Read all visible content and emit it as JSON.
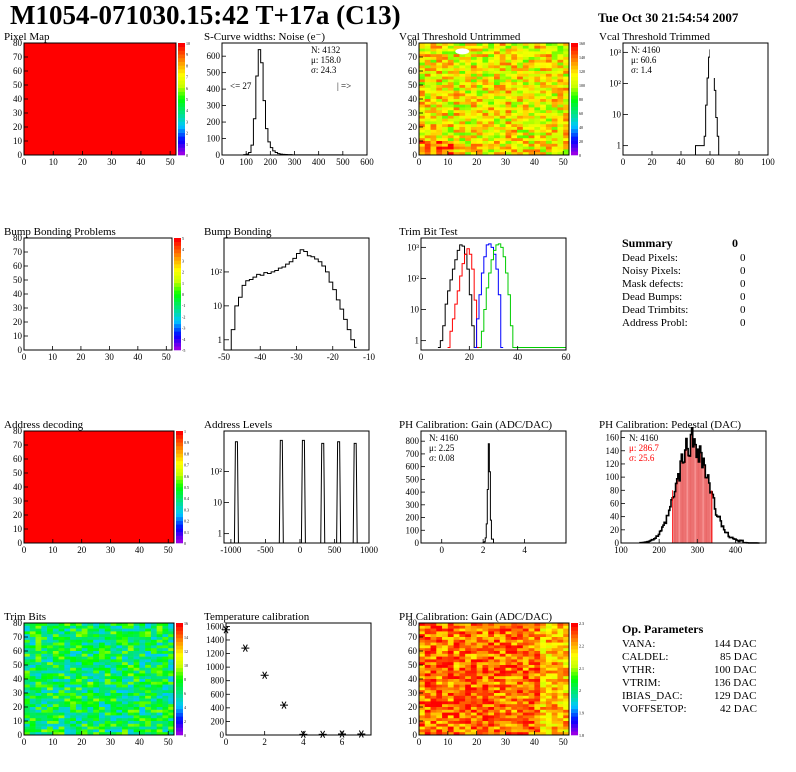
{
  "header": {
    "title": "M1054-071030.15:42 T+17a (C13)",
    "date": "Tue Oct 30 21:54:54 2007"
  },
  "colors": {
    "map_fill": "#ff0000",
    "hist_line": "#000000",
    "trim_red": "#ff0000",
    "trim_blue": "#0000ff",
    "trim_green": "#00cc00",
    "pedestal_red": "#ff0000"
  },
  "summary": {
    "title": "Summary",
    "total": "0",
    "rows": [
      {
        "label": "Dead Pixels:",
        "value": "0"
      },
      {
        "label": "Noisy Pixels:",
        "value": "0"
      },
      {
        "label": "Mask defects:",
        "value": "0"
      },
      {
        "label": "Dead Bumps:",
        "value": "0"
      },
      {
        "label": "Dead Trimbits:",
        "value": "0"
      },
      {
        "label": "Address Probl:",
        "value": "0"
      }
    ]
  },
  "op_params": {
    "title": "Op. Parameters",
    "rows": [
      {
        "label": "VANA:",
        "value": "144 DAC"
      },
      {
        "label": "CALDEL:",
        "value": "85 DAC"
      },
      {
        "label": "VTHR:",
        "value": "100 DAC"
      },
      {
        "label": "VTRIM:",
        "value": "136 DAC"
      },
      {
        "label": "IBIAS_DAC:",
        "value": "129 DAC"
      },
      {
        "label": "VOFFSETOP:",
        "value": "42 DAC"
      }
    ]
  },
  "chart_data": [
    {
      "id": "pixel_map",
      "type": "heatmap",
      "title": "Pixel Map",
      "xlim": [
        0,
        52
      ],
      "ylim": [
        0,
        80
      ],
      "xticks": [
        0,
        10,
        20,
        30,
        40,
        50
      ],
      "yticks": [
        0,
        10,
        20,
        30,
        40,
        50,
        60,
        70,
        80
      ],
      "fill": "uniform",
      "zlim": [
        0,
        10
      ],
      "colorbar_ticks": [
        "0",
        "1",
        "2",
        "3",
        "4",
        "5",
        "6",
        "7",
        "8",
        "9",
        "10"
      ]
    },
    {
      "id": "scurve",
      "type": "bar",
      "title": "S-Curve widths: Noise (e⁻)",
      "xlim": [
        0,
        600
      ],
      "ylim": [
        0,
        680
      ],
      "xticks": [
        0,
        100,
        200,
        300,
        400,
        500,
        600
      ],
      "yticks": [
        0,
        100,
        200,
        300,
        400,
        500,
        600
      ],
      "stats": [
        "N: 4132",
        "μ: 158.0",
        "σ: 24.3"
      ],
      "annotations": [
        "<= 27",
        "| =>"
      ],
      "x": [
        80,
        90,
        100,
        110,
        120,
        130,
        140,
        150,
        160,
        170,
        180,
        190,
        200,
        210,
        220,
        230,
        240,
        250,
        260,
        270,
        280,
        290,
        300,
        320,
        350,
        410,
        440,
        500
      ],
      "values": [
        0,
        2,
        5,
        15,
        60,
        220,
        480,
        640,
        560,
        330,
        160,
        80,
        45,
        25,
        15,
        8,
        5,
        4,
        3,
        2,
        2,
        1,
        1,
        1,
        1,
        1,
        1,
        0
      ]
    },
    {
      "id": "vcal_untrimmed",
      "type": "heatmap",
      "title": "Vcal Threshold Untrimmed",
      "xlim": [
        0,
        52
      ],
      "ylim": [
        0,
        80
      ],
      "xticks": [
        0,
        10,
        20,
        30,
        40,
        50
      ],
      "yticks": [
        0,
        10,
        20,
        30,
        40,
        50,
        60,
        70,
        80
      ],
      "zlim": [
        0,
        160
      ],
      "colorbar_ticks": [
        "0",
        "20",
        "40",
        "60",
        "80",
        "100",
        "120",
        "140",
        "160"
      ],
      "dominant": "yellow-orange"
    },
    {
      "id": "vcal_trimmed",
      "type": "bar",
      "title": "Vcal Threshold Trimmed",
      "scale": "log",
      "xlim": [
        0,
        100
      ],
      "ylim": [
        0.5,
        2000
      ],
      "xticks": [
        0,
        20,
        40,
        60,
        80,
        100
      ],
      "yticks_label": [
        "1",
        "10",
        "10²",
        "10³"
      ],
      "stats": [
        "N: 4160",
        "μ: 60.6",
        "σ: 1.4"
      ],
      "x": [
        50,
        52,
        54,
        56,
        57,
        58,
        59,
        60,
        61,
        62,
        63,
        64,
        65,
        66
      ],
      "values": [
        1,
        1,
        1,
        2,
        20,
        150,
        700,
        1200,
        1000,
        400,
        60,
        8,
        2,
        0
      ]
    },
    {
      "id": "bump_problems",
      "type": "heatmap",
      "title": "Bump Bonding Problems",
      "xlim": [
        0,
        52
      ],
      "ylim": [
        0,
        80
      ],
      "xticks": [
        0,
        10,
        20,
        30,
        40,
        50
      ],
      "yticks": [
        0,
        10,
        20,
        30,
        40,
        50,
        60,
        70,
        80
      ],
      "fill": "empty",
      "zlim": [
        -5,
        5
      ],
      "colorbar_ticks": [
        "-5",
        "-4",
        "-3",
        "-2",
        "-1",
        "0",
        "1",
        "2",
        "3",
        "4",
        "5"
      ]
    },
    {
      "id": "bump_bonding",
      "type": "bar",
      "title": "Bump Bonding",
      "scale": "log",
      "xlim": [
        -50,
        -10
      ],
      "ylim": [
        0.5,
        1000
      ],
      "xticks": [
        -50,
        -40,
        -30,
        -20,
        -10
      ],
      "yticks_label": [
        "1",
        "10",
        "10²"
      ],
      "x": [
        -48,
        -47,
        -46,
        -45,
        -44,
        -43,
        -42,
        -41,
        -40,
        -39,
        -38,
        -37,
        -36,
        -35,
        -34,
        -33,
        -32,
        -31,
        -30,
        -29,
        -28,
        -27,
        -26,
        -25,
        -24,
        -23,
        -22,
        -21,
        -20,
        -19,
        -18,
        -17,
        -16,
        -15,
        -14
      ],
      "values": [
        2,
        10,
        18,
        40,
        55,
        60,
        70,
        85,
        80,
        95,
        90,
        100,
        110,
        130,
        140,
        170,
        200,
        250,
        350,
        450,
        400,
        300,
        280,
        240,
        200,
        150,
        100,
        50,
        30,
        15,
        8,
        4,
        2,
        1,
        0.6
      ]
    },
    {
      "id": "trim_bit_test",
      "type": "line",
      "title": "Trim Bit Test",
      "scale": "log",
      "xlim": [
        0,
        60
      ],
      "ylim": [
        0.5,
        2000
      ],
      "xticks": [
        0,
        20,
        40,
        60
      ],
      "yticks_label": [
        "1",
        "10",
        "10²",
        "10³"
      ],
      "series": [
        {
          "color": "#000000",
          "x": [
            7,
            8,
            9,
            10,
            11,
            12,
            13,
            14,
            15,
            16,
            17,
            18,
            19,
            20,
            21,
            22
          ],
          "values": [
            0.6,
            1,
            3,
            15,
            40,
            90,
            200,
            400,
            800,
            1200,
            1100,
            600,
            200,
            30,
            3,
            0.6
          ]
        },
        {
          "color": "#ff0000",
          "x": [
            11,
            12,
            13,
            14,
            15,
            16,
            17,
            18,
            19,
            20,
            21,
            22,
            23
          ],
          "values": [
            0.6,
            2,
            5,
            15,
            40,
            120,
            300,
            600,
            900,
            600,
            200,
            20,
            0.6
          ]
        },
        {
          "color": "#0000ff",
          "x": [
            22,
            23,
            24,
            25,
            26,
            27,
            28,
            29,
            30,
            31,
            32,
            33
          ],
          "values": [
            0.6,
            5,
            30,
            150,
            500,
            1200,
            1300,
            1000,
            600,
            200,
            30,
            0.6
          ]
        },
        {
          "color": "#00cc00",
          "x": [
            24,
            25,
            26,
            27,
            28,
            29,
            30,
            31,
            32,
            33,
            34,
            35,
            36,
            37,
            38
          ],
          "values": [
            0.6,
            2,
            10,
            50,
            150,
            400,
            800,
            1200,
            1300,
            1000,
            500,
            150,
            30,
            3,
            0.6
          ]
        }
      ]
    },
    {
      "id": "address_decoding",
      "type": "heatmap",
      "title": "Address decoding",
      "xlim": [
        0,
        52
      ],
      "ylim": [
        0,
        80
      ],
      "xticks": [
        0,
        10,
        20,
        30,
        40,
        50
      ],
      "yticks": [
        0,
        10,
        20,
        30,
        40,
        50,
        60,
        70,
        80
      ],
      "fill": "uniform",
      "zlim": [
        0,
        1
      ],
      "colorbar_ticks": [
        "0",
        "0.1",
        "0.2",
        "0.3",
        "0.4",
        "0.5",
        "0.6",
        "0.7",
        "0.8",
        "0.9",
        "1"
      ]
    },
    {
      "id": "address_levels",
      "type": "bar",
      "title": "Address Levels",
      "scale": "log",
      "xlim": [
        -1100,
        1000
      ],
      "ylim": [
        0.5,
        2000
      ],
      "xticks": [
        -1000,
        -500,
        0,
        500,
        1000
      ],
      "yticks_label": [
        "1",
        "10",
        "10²"
      ],
      "peaks": [
        -920,
        -270,
        50,
        330,
        560,
        800
      ],
      "peak_heights": [
        900,
        1000,
        1000,
        800,
        900,
        800
      ]
    },
    {
      "id": "ph_gain",
      "type": "bar",
      "title": "PH Calibration: Gain (ADC/DAC)",
      "xlim": [
        -1,
        6
      ],
      "ylim": [
        0,
        880
      ],
      "xticks": [
        0,
        2,
        4
      ],
      "yticks": [
        0,
        100,
        200,
        300,
        400,
        500,
        600,
        700,
        800
      ],
      "stats": [
        "N: 4160",
        "μ: 2.25",
        "σ: 0.08"
      ],
      "x": [
        1.9,
        2.0,
        2.05,
        2.1,
        2.15,
        2.2,
        2.25,
        2.3,
        2.35,
        2.4,
        2.5
      ],
      "values": [
        0,
        3,
        10,
        40,
        150,
        420,
        780,
        560,
        180,
        30,
        0
      ]
    },
    {
      "id": "ph_pedestal",
      "type": "bar",
      "title": "PH Calibration: Pedestal (DAC)",
      "xlim": [
        100,
        480
      ],
      "ylim": [
        0,
        170
      ],
      "xticks": [
        100,
        200,
        300,
        400
      ],
      "yticks": [
        0,
        20,
        40,
        60,
        80,
        100,
        120,
        140,
        160
      ],
      "stats": [
        "N: 4160",
        "μ: 286.7",
        "σ: 25.6"
      ],
      "limits": [
        235,
        338
      ]
    },
    {
      "id": "trim_bits",
      "type": "heatmap",
      "title": "Trim Bits",
      "xlim": [
        0,
        52
      ],
      "ylim": [
        0,
        80
      ],
      "xticks": [
        0,
        10,
        20,
        30,
        40,
        50
      ],
      "yticks": [
        0,
        10,
        20,
        30,
        40,
        50,
        60,
        70,
        80
      ],
      "zlim": [
        0,
        16
      ],
      "colorbar_ticks": [
        "0",
        "2",
        "4",
        "6",
        "8",
        "10",
        "12",
        "14",
        "16"
      ],
      "dominant": "green-cyan"
    },
    {
      "id": "temperature",
      "type": "scatter",
      "title": "Temperature calibration",
      "xlim": [
        0,
        7.5
      ],
      "ylim": [
        0,
        1650
      ],
      "xticks": [
        0,
        2,
        4,
        6
      ],
      "yticks": [
        0,
        200,
        400,
        600,
        800,
        1000,
        1200,
        1400,
        1600
      ],
      "x": [
        0,
        1,
        2,
        3,
        4,
        5,
        6,
        7
      ],
      "values": [
        1550,
        1280,
        880,
        440,
        10,
        10,
        15,
        15
      ]
    },
    {
      "id": "ph_gain_map",
      "type": "heatmap",
      "title": "PH Calibration: Gain (ADC/DAC)",
      "xlim": [
        0,
        52
      ],
      "ylim": [
        0,
        80
      ],
      "xticks": [
        0,
        10,
        20,
        30,
        40,
        50
      ],
      "yticks": [
        0,
        10,
        20,
        30,
        40,
        50,
        60,
        70,
        80
      ],
      "zlim": [
        1.7,
        2.4
      ],
      "colorbar_ticks": [
        "1.8",
        "1.9",
        "2",
        "2.1",
        "2.2",
        "2.3"
      ],
      "dominant": "red-orange"
    }
  ]
}
